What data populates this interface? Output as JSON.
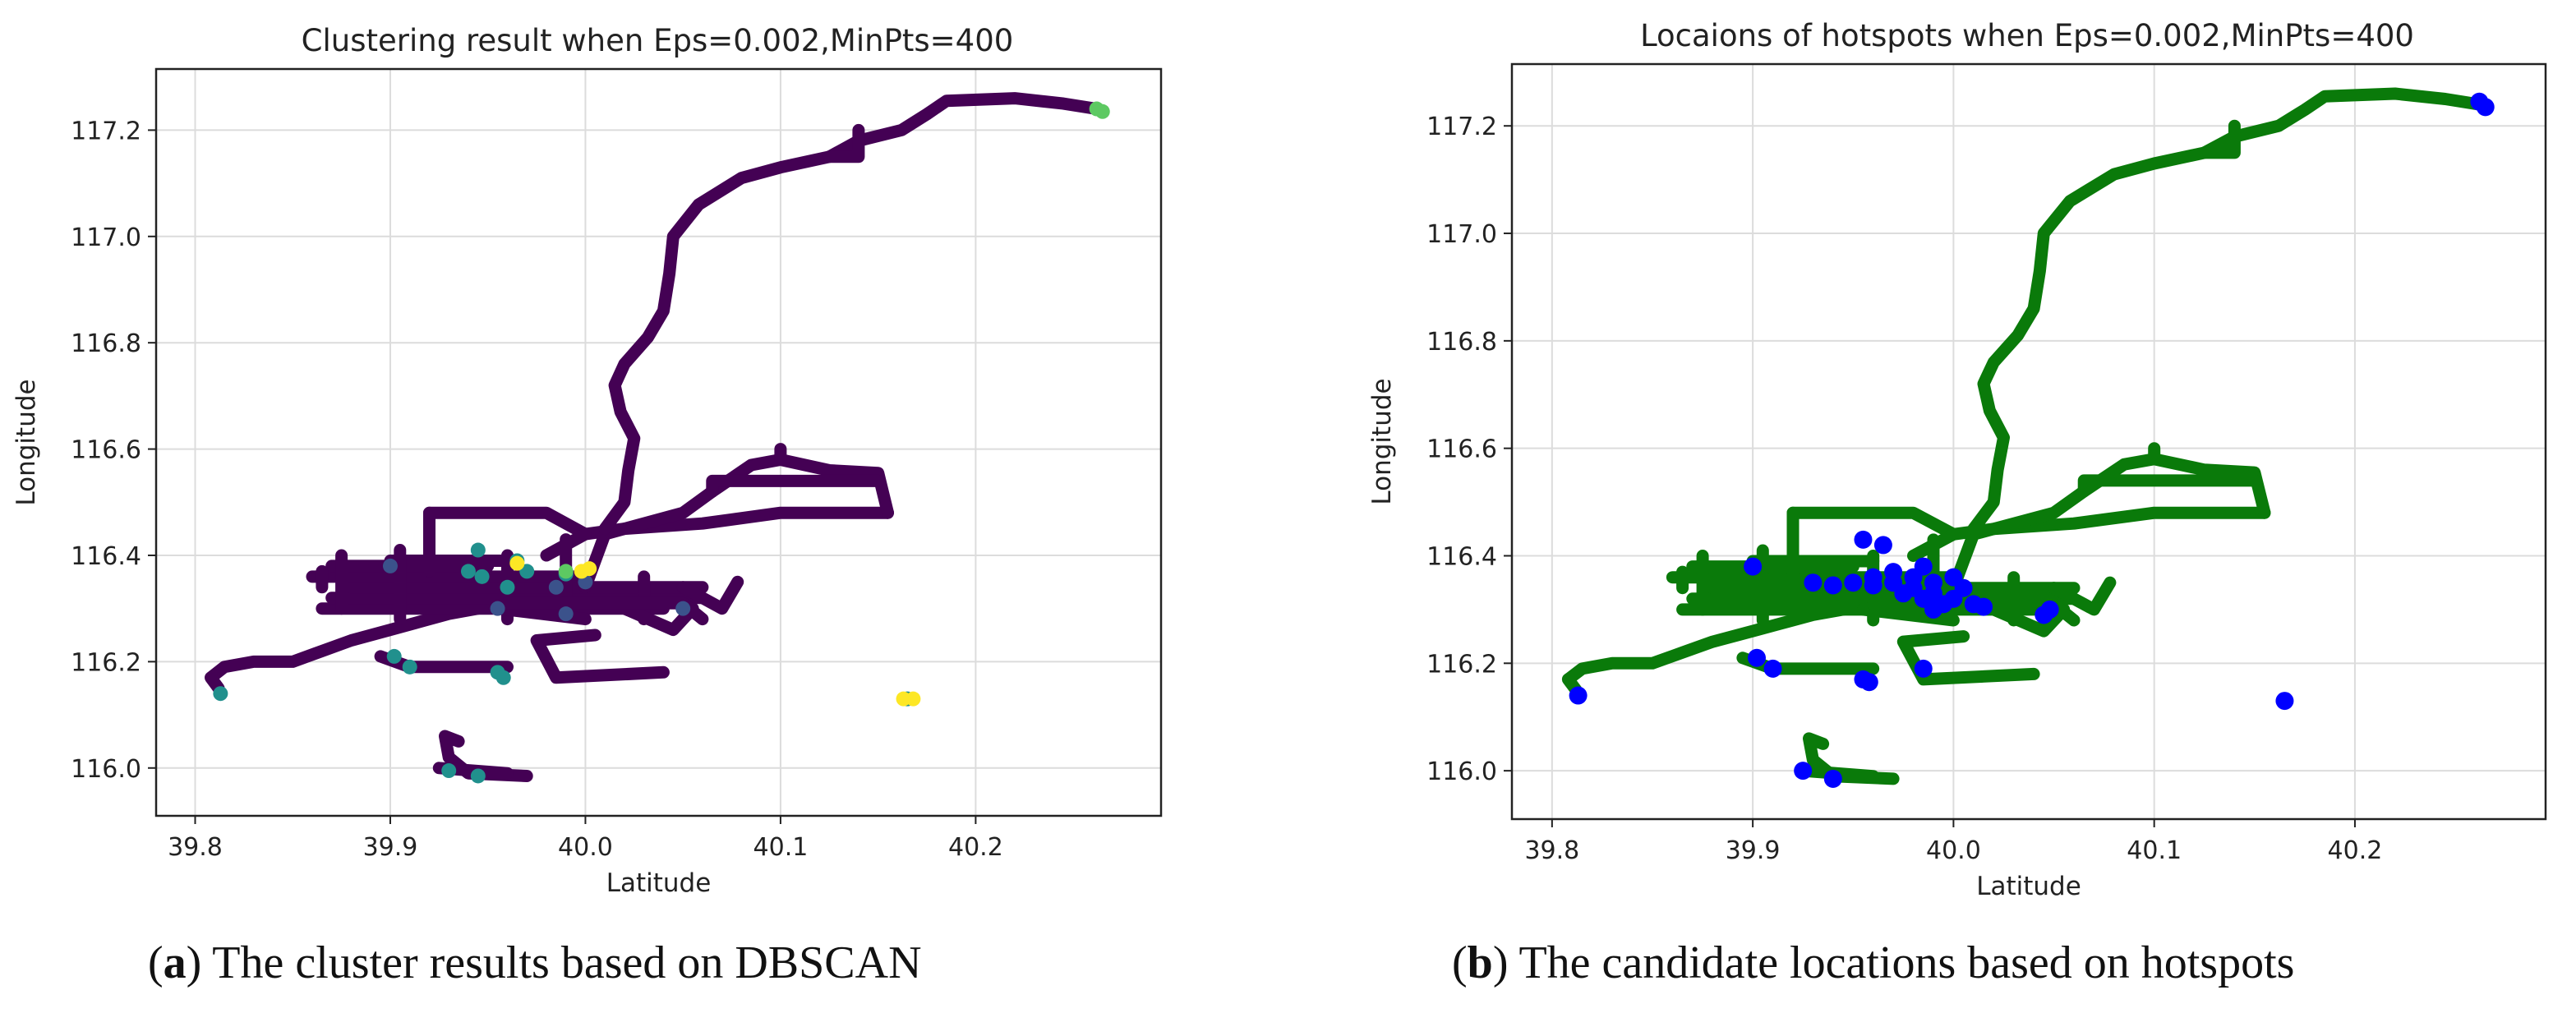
{
  "panels": [
    {
      "caption_letter": "a",
      "caption_text": "The cluster results based on DBSCAN"
    },
    {
      "caption_letter": "b",
      "caption_text": "The candidate locations based on hotspots"
    }
  ],
  "chart_data": [
    {
      "type": "scatter",
      "title": "Clustering result when Eps=0.002,MinPts=400",
      "xlabel": "Latitude",
      "ylabel": "Longitude",
      "xlim": [
        39.78,
        40.295
      ],
      "ylim": [
        115.91,
        117.315
      ],
      "xticks": [
        39.8,
        39.9,
        40.0,
        40.1,
        40.2
      ],
      "xtick_labels": [
        "39.8",
        "39.9",
        "40.0",
        "40.1",
        "40.2"
      ],
      "yticks": [
        116.0,
        116.2,
        116.4,
        116.6,
        116.8,
        117.0,
        117.2
      ],
      "ytick_labels": [
        "116.0",
        "116.2",
        "116.4",
        "116.6",
        "116.8",
        "117.0",
        "117.2"
      ],
      "grid": true,
      "colors": {
        "noise": "#440154",
        "cluster_teal": "#21908d",
        "cluster_blue": "#3b528b",
        "cluster_green": "#5dc962",
        "cluster_yellow": "#fde725"
      },
      "series": [
        {
          "role": "noise",
          "color": "#440154",
          "paths": [
            [
              [
                39.812,
                116.15
              ],
              [
                39.808,
                116.17
              ],
              [
                39.815,
                116.19
              ],
              [
                39.83,
                116.2
              ],
              [
                39.85,
                116.2
              ],
              [
                39.865,
                116.22
              ],
              [
                39.88,
                116.24
              ],
              [
                39.9,
                116.26
              ],
              [
                39.93,
                116.29
              ],
              [
                39.96,
                116.31
              ],
              [
                40.0,
                116.34
              ]
            ],
            [
              [
                39.865,
                116.3
              ],
              [
                40.04,
                116.3
              ]
            ],
            [
              [
                39.87,
                116.32
              ],
              [
                40.06,
                116.32
              ]
            ],
            [
              [
                39.88,
                116.34
              ],
              [
                40.06,
                116.34
              ]
            ],
            [
              [
                39.86,
                116.36
              ],
              [
                40.0,
                116.36
              ]
            ],
            [
              [
                39.87,
                116.38
              ],
              [
                39.95,
                116.38
              ]
            ],
            [
              [
                39.9,
                116.39
              ],
              [
                39.96,
                116.39
              ]
            ],
            [
              [
                39.875,
                116.4
              ],
              [
                39.875,
                116.3
              ]
            ],
            [
              [
                39.865,
                116.37
              ],
              [
                39.865,
                116.34
              ]
            ],
            [
              [
                39.905,
                116.41
              ],
              [
                39.905,
                116.28
              ]
            ],
            [
              [
                39.96,
                116.4
              ],
              [
                39.96,
                116.28
              ]
            ],
            [
              [
                39.92,
                116.48
              ],
              [
                39.92,
                116.37
              ]
            ],
            [
              [
                39.92,
                116.48
              ],
              [
                39.98,
                116.48
              ],
              [
                40.0,
                116.44
              ],
              [
                40.02,
                116.45
              ],
              [
                40.06,
                116.46
              ],
              [
                40.1,
                116.48
              ],
              [
                40.155,
                116.48
              ]
            ],
            [
              [
                39.98,
                116.4
              ],
              [
                40.0,
                116.44
              ]
            ],
            [
              [
                39.99,
                116.43
              ],
              [
                39.99,
                116.3
              ]
            ],
            [
              [
                40.03,
                116.36
              ],
              [
                40.03,
                116.28
              ]
            ],
            [
              [
                40.05,
                116.34
              ],
              [
                40.07,
                116.3
              ],
              [
                40.078,
                116.35
              ]
            ],
            [
              [
                40.02,
                116.3
              ],
              [
                40.045,
                116.26
              ],
              [
                40.055,
                116.3
              ]
            ],
            [
              [
                40.0,
                116.34
              ],
              [
                40.01,
                116.44
              ],
              [
                40.02,
                116.45
              ],
              [
                40.05,
                116.48
              ],
              [
                40.065,
                116.52
              ],
              [
                40.085,
                116.57
              ],
              [
                40.1,
                116.58
              ],
              [
                40.125,
                116.56
              ],
              [
                40.15,
                116.555
              ],
              [
                40.155,
                116.48
              ]
            ],
            [
              [
                40.065,
                116.52
              ],
              [
                40.065,
                116.54
              ],
              [
                40.15,
                116.54
              ]
            ],
            [
              [
                40.1,
                116.58
              ],
              [
                40.1,
                116.6
              ]
            ],
            [
              [
                40.01,
                116.45
              ],
              [
                40.02,
                116.5
              ],
              [
                40.022,
                116.56
              ],
              [
                40.025,
                116.62
              ],
              [
                40.018,
                116.67
              ],
              [
                40.015,
                116.72
              ],
              [
                40.02,
                116.76
              ],
              [
                40.032,
                116.81
              ],
              [
                40.04,
                116.86
              ],
              [
                40.043,
                116.93
              ],
              [
                40.045,
                117.0
              ],
              [
                40.058,
                117.06
              ],
              [
                40.08,
                117.11
              ],
              [
                40.1,
                117.13
              ],
              [
                40.125,
                117.15
              ],
              [
                40.14,
                117.18
              ],
              [
                40.162,
                117.2
              ],
              [
                40.175,
                117.23
              ],
              [
                40.185,
                117.255
              ],
              [
                40.22,
                117.26
              ],
              [
                40.245,
                117.25
              ],
              [
                40.262,
                117.24
              ]
            ],
            [
              [
                40.125,
                117.15
              ],
              [
                40.14,
                117.15
              ],
              [
                40.14,
                117.2
              ]
            ],
            [
              [
                40.04,
                116.18
              ],
              [
                39.985,
                116.17
              ],
              [
                39.975,
                116.24
              ],
              [
                40.005,
                116.25
              ]
            ],
            [
              [
                39.955,
                116.3
              ],
              [
                40.0,
                116.28
              ]
            ],
            [
              [
                39.895,
                116.21
              ],
              [
                39.91,
                116.19
              ],
              [
                39.96,
                116.19
              ]
            ],
            [
              [
                39.935,
                116.05
              ],
              [
                39.928,
                116.06
              ],
              [
                39.93,
                116.02
              ],
              [
                39.94,
                115.99
              ],
              [
                39.97,
                115.985
              ]
            ],
            [
              [
                39.925,
                116.0
              ],
              [
                39.96,
                115.99
              ]
            ],
            [
              [
                39.96,
                116.31
              ],
              [
                40.05,
                116.31
              ],
              [
                40.06,
                116.28
              ]
            ]
          ],
          "points": []
        },
        {
          "role": "cluster",
          "color": "#21908d",
          "points": [
            [
              39.813,
              116.14
            ],
            [
              39.902,
              116.21
            ],
            [
              39.91,
              116.19
            ],
            [
              39.955,
              116.18
            ],
            [
              39.958,
              116.17
            ],
            [
              39.945,
              116.41
            ],
            [
              39.94,
              116.37
            ],
            [
              39.947,
              116.36
            ],
            [
              39.96,
              116.34
            ],
            [
              39.965,
              116.39
            ],
            [
              39.97,
              116.37
            ],
            [
              39.93,
              115.995
            ],
            [
              39.945,
              115.985
            ],
            [
              39.99,
              116.365
            ],
            [
              40.165,
              116.13
            ]
          ]
        },
        {
          "role": "cluster",
          "color": "#3b528b",
          "points": [
            [
              39.9,
              116.38
            ],
            [
              39.955,
              116.3
            ],
            [
              39.985,
              116.34
            ],
            [
              40.0,
              116.35
            ],
            [
              40.05,
              116.3
            ],
            [
              39.99,
              116.29
            ]
          ]
        },
        {
          "role": "cluster",
          "color": "#5dc962",
          "points": [
            [
              40.262,
              117.24
            ],
            [
              40.265,
              117.235
            ],
            [
              39.99,
              116.37
            ]
          ]
        },
        {
          "role": "cluster",
          "color": "#fde725",
          "points": [
            [
              40.168,
              116.13
            ],
            [
              40.163,
              116.13
            ],
            [
              39.998,
              116.37
            ],
            [
              40.002,
              116.375
            ],
            [
              39.965,
              116.385
            ]
          ]
        }
      ]
    },
    {
      "type": "scatter",
      "title": "Locaions of hotspots when Eps=0.002,MinPts=400",
      "xlabel": "Latitude",
      "ylabel": "Longitude",
      "xlim": [
        39.78,
        40.295
      ],
      "ylim": [
        115.91,
        117.315
      ],
      "xticks": [
        39.8,
        39.9,
        40.0,
        40.1,
        40.2
      ],
      "xtick_labels": [
        "39.8",
        "39.9",
        "40.0",
        "40.1",
        "40.2"
      ],
      "yticks": [
        116.0,
        116.2,
        116.4,
        116.6,
        116.8,
        117.0,
        117.2
      ],
      "ytick_labels": [
        "116.0",
        "116.2",
        "116.4",
        "116.6",
        "116.8",
        "117.0",
        "117.2"
      ],
      "grid": true,
      "colors": {
        "trajectory": "#0a7a0a",
        "hotspot": "#0000ff"
      },
      "series": [
        {
          "role": "trajectory",
          "color": "#0a7a0a",
          "paths": "same_as_panel_a_noise",
          "points": []
        },
        {
          "role": "hotspot",
          "color": "#0000ff",
          "points": [
            [
              39.813,
              116.14
            ],
            [
              39.9,
              116.38
            ],
            [
              39.902,
              116.21
            ],
            [
              39.91,
              116.19
            ],
            [
              39.955,
              116.17
            ],
            [
              39.958,
              116.165
            ],
            [
              39.955,
              116.43
            ],
            [
              39.965,
              116.42
            ],
            [
              39.93,
              116.35
            ],
            [
              39.94,
              116.345
            ],
            [
              39.95,
              116.35
            ],
            [
              39.96,
              116.345
            ],
            [
              39.97,
              116.35
            ],
            [
              39.975,
              116.33
            ],
            [
              39.98,
              116.34
            ],
            [
              39.985,
              116.32
            ],
            [
              39.99,
              116.33
            ],
            [
              39.995,
              116.31
            ],
            [
              40.0,
              116.32
            ],
            [
              40.005,
              116.34
            ],
            [
              40.01,
              116.31
            ],
            [
              40.015,
              116.305
            ],
            [
              39.96,
              116.36
            ],
            [
              39.97,
              116.37
            ],
            [
              39.98,
              116.36
            ],
            [
              39.985,
              116.38
            ],
            [
              39.99,
              116.35
            ],
            [
              40.0,
              116.36
            ],
            [
              40.048,
              116.3
            ],
            [
              40.045,
              116.29
            ],
            [
              39.985,
              116.19
            ],
            [
              39.925,
              116.0
            ],
            [
              39.94,
              115.985
            ],
            [
              40.165,
              116.13
            ],
            [
              40.262,
              117.245
            ],
            [
              40.265,
              117.235
            ],
            [
              39.99,
              116.3
            ]
          ]
        }
      ]
    }
  ]
}
